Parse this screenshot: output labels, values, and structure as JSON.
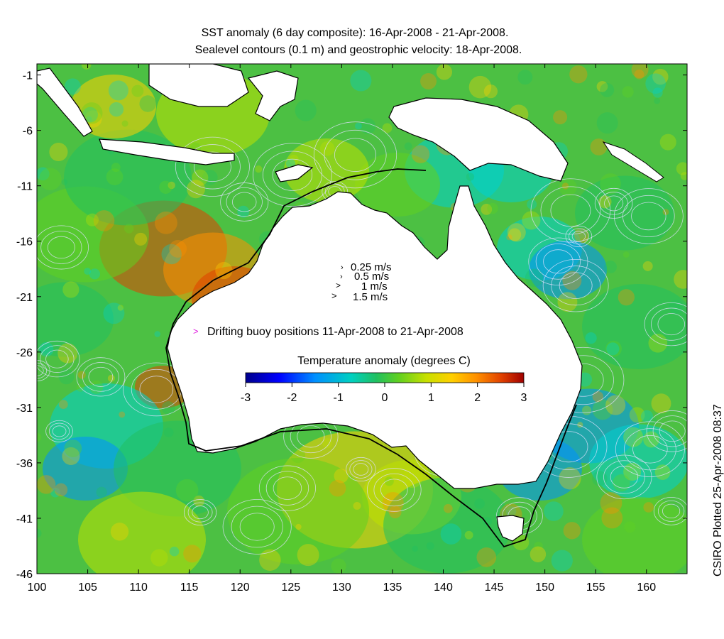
{
  "header": {
    "title_line1": "SST anomaly (6 day composite): 16-Apr-2008 - 21-Apr-2008.",
    "title_line2": "Sealevel contours (0.1 m) and geostrophic velocity: 18-Apr-2008."
  },
  "credit": "CSIRO Plotted 25-Apr-2008 08:37",
  "axes": {
    "x_ticks": [
      "100",
      "105",
      "110",
      "115",
      "120",
      "125",
      "130",
      "135",
      "140",
      "145",
      "150",
      "155",
      "160"
    ],
    "y_ticks": [
      "-1",
      "-6",
      "-11",
      "-16",
      "-21",
      "-26",
      "-31",
      "-36",
      "-41",
      "-46"
    ],
    "x_range": [
      100,
      164
    ],
    "y_range": [
      -46,
      0
    ]
  },
  "velocity_key": {
    "items": [
      "0.25 m/s",
      "0.5 m/s",
      "1 m/s",
      "1.5 m/s"
    ]
  },
  "buoy_legend": {
    "symbol": ">",
    "label": "Drifting buoy positions 11-Apr-2008 to 21-Apr-2008",
    "color": "#e020e0"
  },
  "colorbar": {
    "title": "Temperature anomaly (degrees C)",
    "ticks": [
      "-3",
      "-2",
      "-1",
      "0",
      "1",
      "2",
      "3"
    ],
    "range": [
      -3,
      3
    ],
    "colors": [
      "#00008b",
      "#0000ff",
      "#0090ff",
      "#00d0d0",
      "#20c060",
      "#60d020",
      "#c0e000",
      "#ffd000",
      "#ff9000",
      "#e04000",
      "#a00000"
    ]
  },
  "colors": {
    "land": "#ffffff",
    "coastline": "#000000",
    "contour": "#e0e0ff",
    "ocean_mid": "#50c040"
  }
}
